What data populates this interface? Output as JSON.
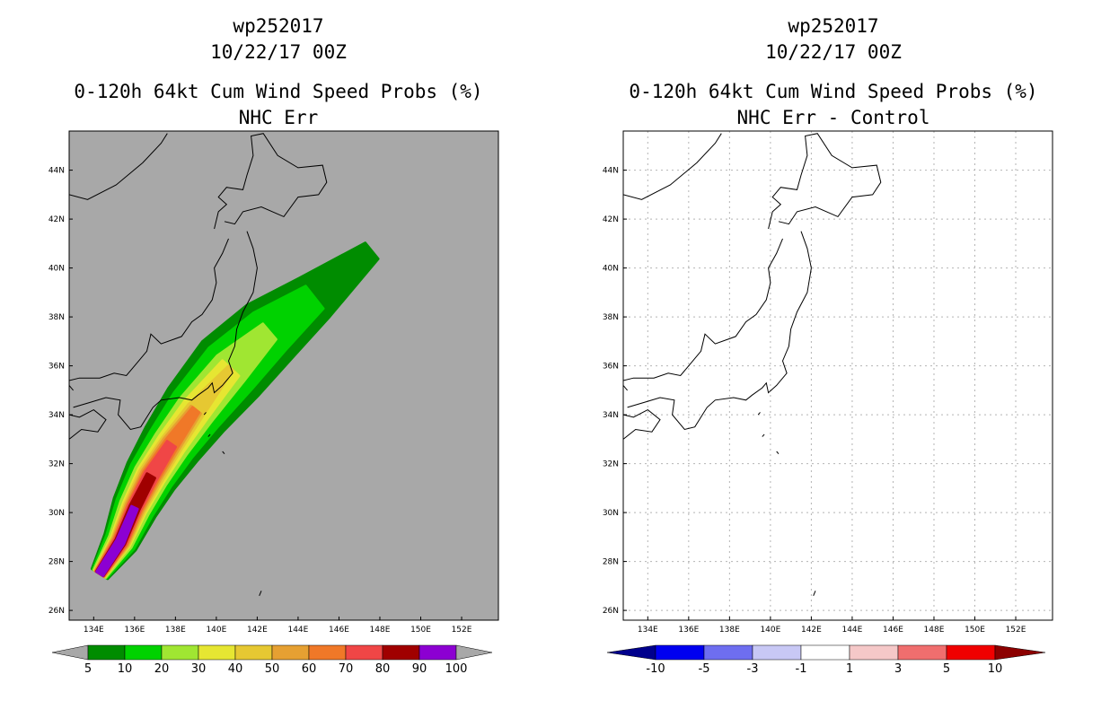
{
  "panels": [
    {
      "title_line1": "wp252017",
      "title_line2": "10/22/17 00Z",
      "title_line3": "0-120h 64kt Cum Wind Speed Probs (%)",
      "title_line4": "NHC Err"
    },
    {
      "title_line1": "wp252017",
      "title_line2": "10/22/17 00Z",
      "title_line3": "0-120h 64kt Cum Wind Speed Probs (%)",
      "title_line4": "NHC Err - Control"
    }
  ],
  "chart_data": [
    {
      "type": "heatmap",
      "title": "0-120h 64kt Cum Wind Speed Probs (%)",
      "subtitle": "NHC Err",
      "x_ticks": [
        "134E",
        "136E",
        "138E",
        "140E",
        "142E",
        "144E",
        "146E",
        "148E",
        "150E",
        "152E"
      ],
      "y_ticks": [
        "26N",
        "28N",
        "30N",
        "32N",
        "34N",
        "36N",
        "38N",
        "40N",
        "42N",
        "44N"
      ],
      "lon_range": [
        132.8,
        153.8
      ],
      "lat_range": [
        25.6,
        45.6
      ],
      "colorbar_labels": [
        "5",
        "10",
        "20",
        "30",
        "40",
        "50",
        "60",
        "70",
        "80",
        "90",
        "100"
      ],
      "colorbar_colors": [
        "#008c00",
        "#00d200",
        "#a0e632",
        "#e6e632",
        "#e6c832",
        "#e6a032",
        "#f07828",
        "#f04646",
        "#a00000",
        "#8c00d2"
      ],
      "background": "#a8a8a8",
      "grid": false,
      "swath_axis_lonlat": [
        [
          134.3,
          27.5
        ],
        [
          135.3,
          28.8
        ],
        [
          136.0,
          30.2
        ],
        [
          136.8,
          31.5
        ],
        [
          137.8,
          32.8
        ],
        [
          139.0,
          34.2
        ],
        [
          140.7,
          35.9
        ],
        [
          142.6,
          37.4
        ],
        [
          144.8,
          38.8
        ],
        [
          147.6,
          40.7
        ]
      ],
      "swath_levels": [
        {
          "level": 5,
          "half_widths": [
            0.45,
            0.85,
            1.1,
            1.3,
            1.5,
            1.7,
            1.9,
            1.7,
            1.2,
            0.5
          ]
        },
        {
          "level": 10,
          "half_widths": [
            0.4,
            0.75,
            0.95,
            1.1,
            1.2,
            1.35,
            1.45,
            1.2,
            0.7,
            0.0
          ]
        },
        {
          "level": 20,
          "half_widths": [
            0.35,
            0.6,
            0.75,
            0.85,
            0.9,
            0.95,
            0.9,
            0.5,
            0.0,
            0.0
          ]
        },
        {
          "level": 30,
          "half_widths": [
            0.3,
            0.5,
            0.6,
            0.7,
            0.7,
            0.7,
            0.55,
            0.0,
            0.0,
            0.0
          ]
        },
        {
          "level": 40,
          "half_widths": [
            0.28,
            0.45,
            0.52,
            0.6,
            0.55,
            0.45,
            0.15,
            0.0,
            0.0,
            0.0
          ]
        },
        {
          "level": 50,
          "half_widths": [
            0.26,
            0.4,
            0.45,
            0.5,
            0.45,
            0.3,
            0.0,
            0.0,
            0.0,
            0.0
          ]
        },
        {
          "level": 60,
          "half_widths": [
            0.24,
            0.35,
            0.38,
            0.42,
            0.35,
            0.2,
            0.0,
            0.0,
            0.0,
            0.0
          ]
        },
        {
          "level": 70,
          "half_widths": [
            0.22,
            0.3,
            0.32,
            0.34,
            0.25,
            0.0,
            0.0,
            0.0,
            0.0,
            0.0
          ]
        },
        {
          "level": 80,
          "half_widths": [
            0.2,
            0.25,
            0.25,
            0.22,
            0.0,
            0.0,
            0.0,
            0.0,
            0.0,
            0.0
          ]
        },
        {
          "level": 90,
          "half_widths": [
            0.18,
            0.2,
            0.16,
            0.0,
            0.0,
            0.0,
            0.0,
            0.0,
            0.0,
            0.0
          ]
        }
      ]
    },
    {
      "type": "heatmap",
      "title": "0-120h 64kt Cum Wind Speed Probs (%)",
      "subtitle": "NHC Err - Control",
      "x_ticks": [
        "134E",
        "136E",
        "138E",
        "140E",
        "142E",
        "144E",
        "146E",
        "148E",
        "150E",
        "152E"
      ],
      "y_ticks": [
        "26N",
        "28N",
        "30N",
        "32N",
        "34N",
        "36N",
        "38N",
        "40N",
        "42N",
        "44N"
      ],
      "lon_range": [
        132.8,
        153.8
      ],
      "lat_range": [
        25.6,
        45.6
      ],
      "colorbar_labels": [
        "-10",
        "-5",
        "-3",
        "-1",
        "1",
        "3",
        "5",
        "10"
      ],
      "colorbar_colors": [
        "#00008c",
        "#0000f0",
        "#6e6ef0",
        "#c8c8f5",
        "#ffffff",
        "#f5c8c8",
        "#f06e6e",
        "#f00000",
        "#8c0000"
      ],
      "background": "#ffffff",
      "grid": true
    }
  ]
}
